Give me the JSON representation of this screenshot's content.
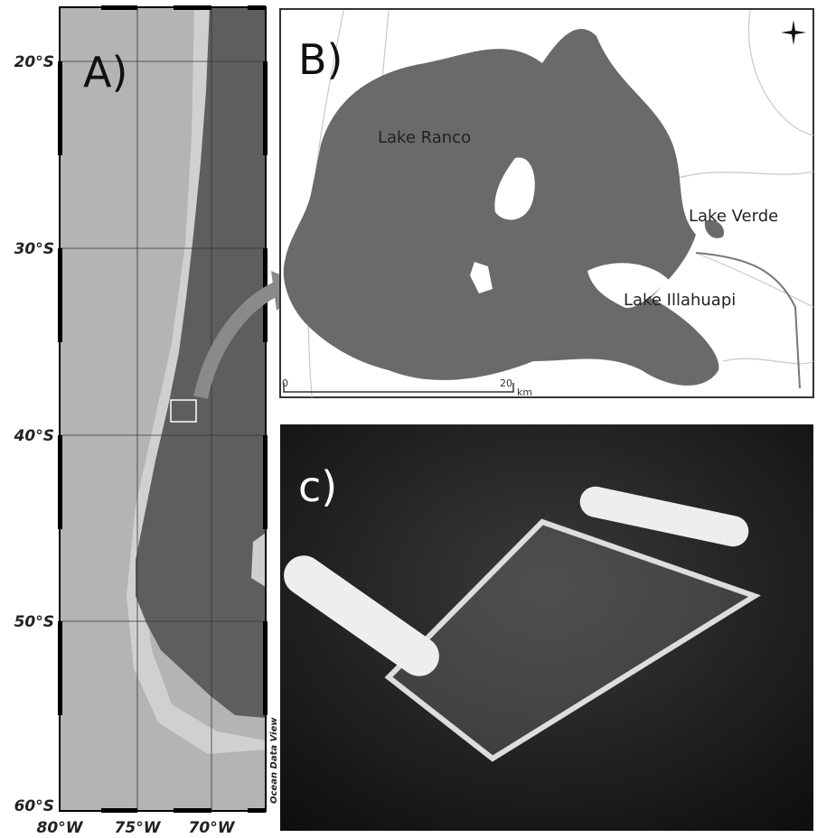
{
  "panel_a": {
    "label": "A)",
    "lat_labels": [
      "20°S",
      "30°S",
      "40°S",
      "50°S",
      "60°S"
    ],
    "lon_labels": [
      "80°W",
      "75°W",
      "70°W"
    ],
    "credit": "Ocean Data View"
  },
  "panel_b": {
    "label": "B)",
    "lakes": [
      "Lake Ranco",
      "Lake Verde",
      "Lake Illahuapi"
    ],
    "scale": {
      "start": "0",
      "end": "20",
      "unit": "km"
    }
  },
  "panel_c": {
    "label": "c)"
  }
}
